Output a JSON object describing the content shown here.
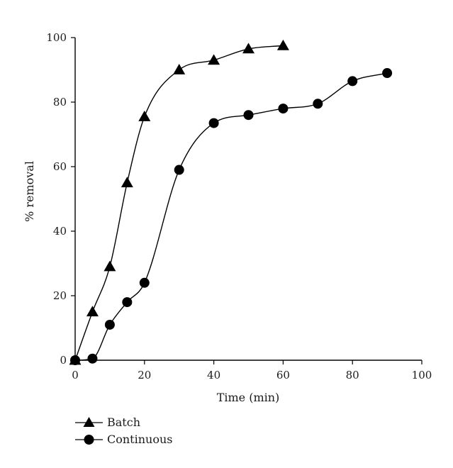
{
  "chart_data": {
    "type": "line",
    "title": "",
    "xlabel": "Time (min)",
    "ylabel": "% removal",
    "xlim": [
      0,
      100
    ],
    "ylim": [
      0,
      100
    ],
    "xticks": [
      0,
      20,
      40,
      60,
      80,
      100
    ],
    "yticks": [
      0,
      20,
      40,
      60,
      80,
      100
    ],
    "grid": false,
    "legend_position": "bottom-left",
    "series": [
      {
        "name": "Batch",
        "marker": "triangle",
        "color": "#000000",
        "x": [
          0,
          5,
          10,
          15,
          20,
          30,
          40,
          50,
          60
        ],
        "y": [
          0,
          15,
          29,
          55,
          75.5,
          90,
          93,
          96.5,
          97.5
        ]
      },
      {
        "name": "Continuous",
        "marker": "circle",
        "color": "#000000",
        "x": [
          0,
          5,
          10,
          15,
          20,
          30,
          40,
          50,
          60,
          70,
          80,
          90
        ],
        "y": [
          0,
          0.5,
          11,
          18,
          24,
          59,
          73.5,
          76,
          78,
          79.5,
          86.5,
          89
        ]
      }
    ]
  }
}
